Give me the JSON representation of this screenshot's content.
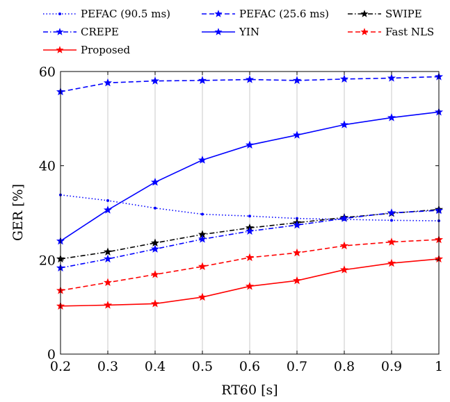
{
  "chart_data": {
    "type": "line",
    "xlabel": "RT60 [s]",
    "ylabel": "GER [%]",
    "xlim": [
      0.2,
      1
    ],
    "ylim": [
      0,
      60
    ],
    "x": [
      0.2,
      0.3,
      0.4,
      0.5,
      0.6,
      0.7,
      0.8,
      0.9,
      1.0
    ],
    "xticks": [
      "0.2",
      "0.3",
      "0.4",
      "0.5",
      "0.6",
      "0.7",
      "0.8",
      "0.9",
      "1"
    ],
    "yticks": [
      "0",
      "20",
      "40",
      "60"
    ],
    "grid": "vertical",
    "legend_position": "top",
    "series": [
      {
        "name": "PEFAC (90.5 ms)",
        "color": "#0000ff",
        "dash": "dotted",
        "marker": "dot",
        "values": [
          33.8,
          32.6,
          31.0,
          29.7,
          29.3,
          28.8,
          28.6,
          28.4,
          28.3
        ]
      },
      {
        "name": "PEFAC (25.6 ms)",
        "color": "#0000ff",
        "dash": "dashed",
        "marker": "star",
        "values": [
          55.7,
          57.6,
          58.0,
          58.1,
          58.3,
          58.1,
          58.4,
          58.6,
          58.9
        ]
      },
      {
        "name": "SWIPE",
        "color": "#000000",
        "dash": "dashdot",
        "marker": "star",
        "values": [
          20.2,
          21.7,
          23.6,
          25.4,
          26.8,
          27.9,
          29.0,
          29.9,
          30.7
        ]
      },
      {
        "name": "CREPE",
        "color": "#0000ff",
        "dash": "dashdot",
        "marker": "star",
        "values": [
          18.3,
          20.2,
          22.3,
          24.4,
          26.1,
          27.4,
          28.8,
          30.0,
          30.5
        ]
      },
      {
        "name": "YIN",
        "color": "#0000ff",
        "dash": "solid",
        "marker": "star",
        "values": [
          24.0,
          30.6,
          36.5,
          41.2,
          44.4,
          46.5,
          48.7,
          50.2,
          51.4
        ]
      },
      {
        "name": "Fast NLS",
        "color": "#ff0000",
        "dash": "dashed",
        "marker": "star",
        "values": [
          13.5,
          15.2,
          16.9,
          18.6,
          20.5,
          21.5,
          23.0,
          23.8,
          24.3
        ]
      },
      {
        "name": "Proposed",
        "color": "#ff0000",
        "dash": "solid",
        "marker": "star",
        "values": [
          10.2,
          10.4,
          10.7,
          12.1,
          14.4,
          15.6,
          17.9,
          19.3,
          20.2
        ]
      }
    ]
  }
}
